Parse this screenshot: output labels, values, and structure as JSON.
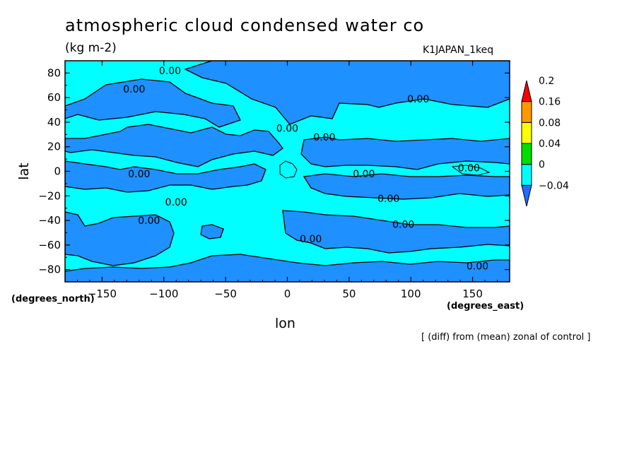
{
  "title": "atmospheric cloud condensed water co",
  "units": "(kg m-2)",
  "run_id": "K1JAPAN_1keq",
  "note": "[ (diff) from (mean) zonal of control ]",
  "colors": {
    "positive_band": "#00ffff",
    "negative_band": "#1e90ff",
    "scale_colors": [
      "#1e6fff",
      "#00ffff",
      "#00dd00",
      "#ffff00",
      "#ff9900",
      "#ff0000"
    ]
  },
  "chart_data": {
    "type": "heatmap",
    "title": "atmospheric cloud condensed water co",
    "units": "(kg m-2)",
    "xlabel": "lon",
    "xunit": "(degrees_east)",
    "ylabel": "lat",
    "yunit": "(degrees_north)",
    "xlim": [
      -180,
      180
    ],
    "ylim": [
      -90,
      90
    ],
    "xticks": [
      -150,
      -100,
      -50,
      0,
      50,
      100,
      150
    ],
    "yticks": [
      -80,
      -60,
      -40,
      -20,
      0,
      20,
      40,
      60,
      80
    ],
    "colorbar": {
      "levels": [
        -0.04,
        0,
        0.04,
        0.08,
        0.16,
        0.2
      ],
      "labels": [
        "−0.04",
        "0",
        "0.04",
        "0.08",
        "0.16",
        "0.2"
      ]
    },
    "contour_labels": [
      {
        "text": "0.00",
        "lon": -95,
        "lat": 82
      },
      {
        "text": "0.00",
        "lon": -124,
        "lat": 67
      },
      {
        "text": "0.00",
        "lon": 106,
        "lat": 59
      },
      {
        "text": "0.00",
        "lon": 0,
        "lat": 35
      },
      {
        "text": "0.00",
        "lon": 30,
        "lat": 28
      },
      {
        "text": "0.00",
        "lon": -120,
        "lat": -2
      },
      {
        "text": "0.00",
        "lon": 62,
        "lat": -2
      },
      {
        "text": "0.00",
        "lon": 147,
        "lat": 3
      },
      {
        "text": "0.00",
        "lon": -90,
        "lat": -25
      },
      {
        "text": "0.00",
        "lon": 82,
        "lat": -22
      },
      {
        "text": "0.00",
        "lon": -112,
        "lat": -40
      },
      {
        "text": "0.00",
        "lon": 94,
        "lat": -43
      },
      {
        "text": "0.00",
        "lon": 19,
        "lat": -55
      },
      {
        "text": "0.00",
        "lon": 154,
        "lat": -77
      }
    ],
    "grid": false
  }
}
